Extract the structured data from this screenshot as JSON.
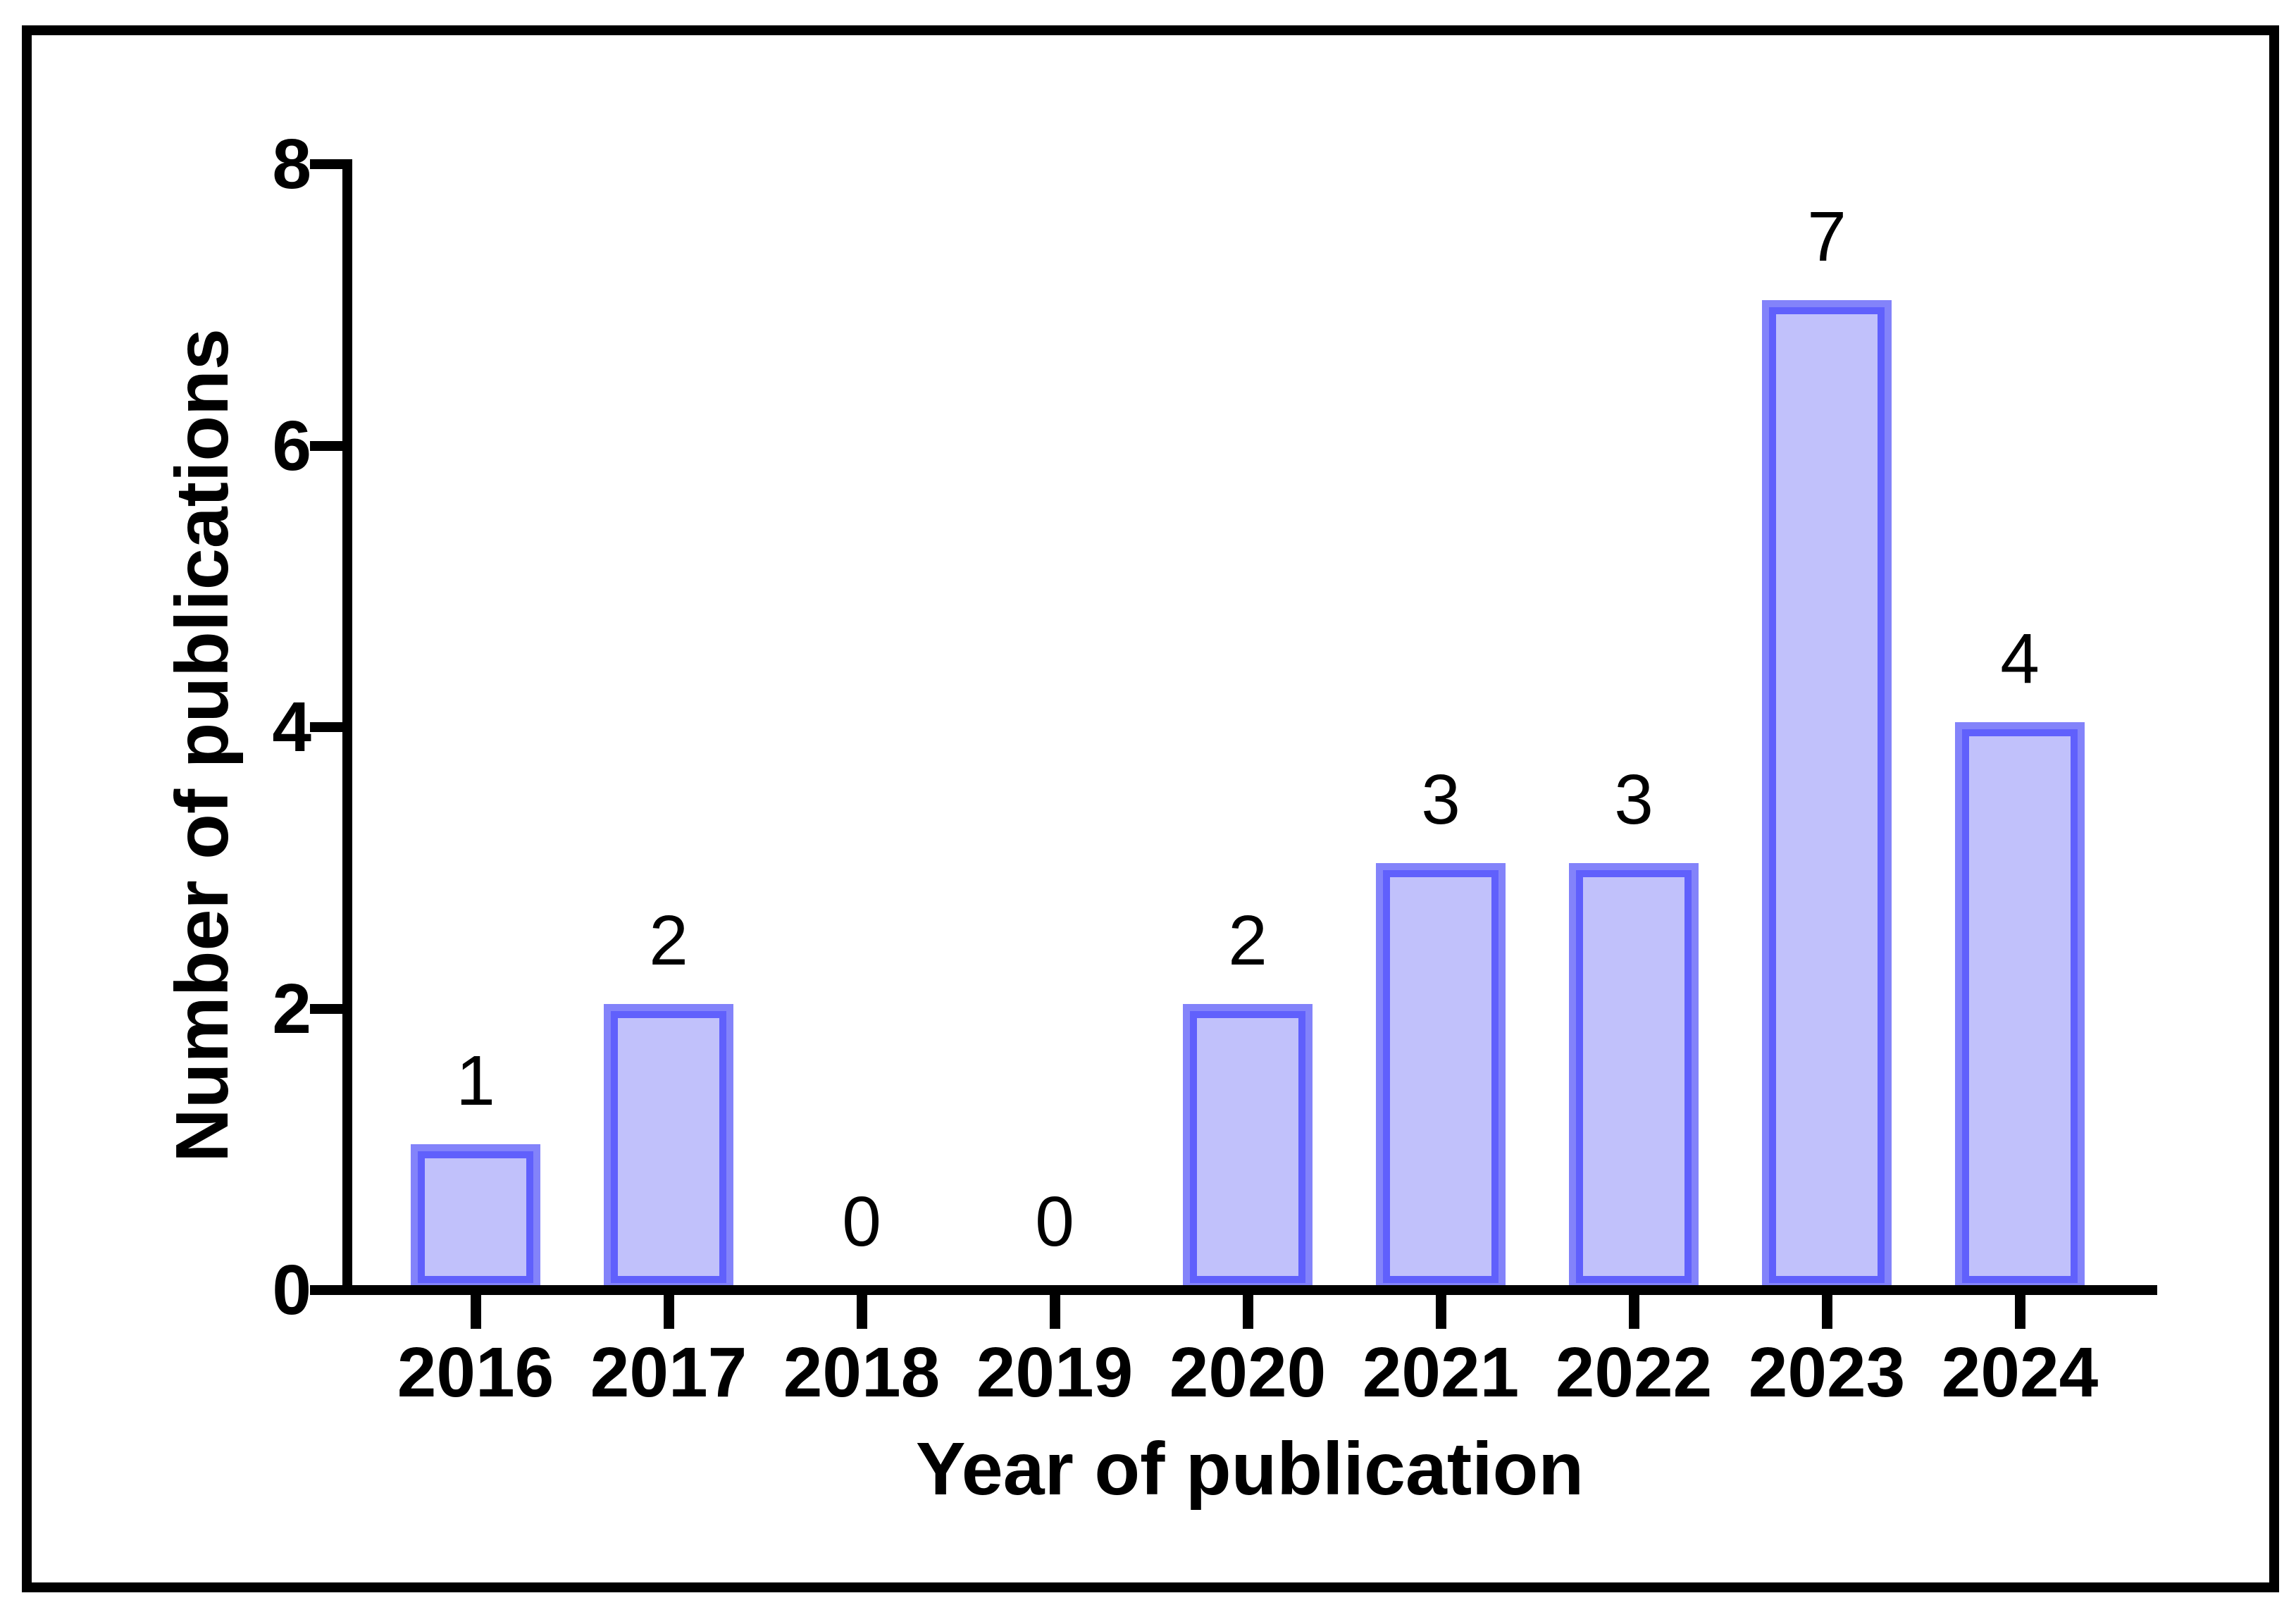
{
  "figure": {
    "xlabel": "Year of publication",
    "ylabel": "Number of publications"
  },
  "chart_data": {
    "type": "bar",
    "title": "",
    "categories": [
      "2016",
      "2017",
      "2018",
      "2019",
      "2020",
      "2021",
      "2022",
      "2023",
      "2024"
    ],
    "values": [
      1,
      2,
      0,
      0,
      2,
      3,
      3,
      7,
      4
    ],
    "bar_value_labels": [
      "1",
      "2",
      "0",
      "0",
      "2",
      "3",
      "3",
      "7",
      "4"
    ],
    "xlabel": "Year of publication",
    "ylabel": "Number of publications",
    "ylim": [
      0,
      8
    ],
    "yticks": [
      0,
      2,
      4,
      6,
      8
    ],
    "grid": false,
    "legend": null,
    "layout_hints": {
      "bar_orientation": "vertical",
      "value_labels_position": "above bars",
      "frame": "black outer rectangle around whole figure"
    },
    "colors": {
      "bar_fill": "#c1c1fb",
      "bar_border": "#6060fc",
      "bar_border_outer": "#8383fa",
      "axis": "#000000",
      "background": "#ffffff",
      "text": "#000000"
    }
  }
}
